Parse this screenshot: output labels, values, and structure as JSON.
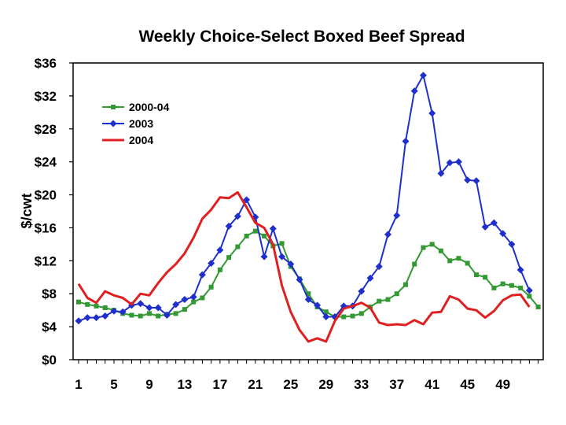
{
  "chart_data": {
    "type": "line",
    "title": "Weekly Choice-Select Boxed Beef Spread",
    "ylabel": "$/cwt",
    "xlabel": "",
    "xlim": [
      1,
      53
    ],
    "ylim": [
      0,
      36
    ],
    "x_ticks": [
      1,
      5,
      9,
      13,
      17,
      21,
      25,
      29,
      33,
      37,
      41,
      45,
      49
    ],
    "x_tick_labels": [
      "1",
      "5",
      "9",
      "13",
      "17",
      "21",
      "25",
      "29",
      "33",
      "37",
      "41",
      "45",
      "49"
    ],
    "y_ticks": [
      0,
      4,
      8,
      12,
      16,
      20,
      24,
      28,
      32,
      36
    ],
    "y_tick_labels": [
      "$0",
      "$4",
      "$8",
      "$12",
      "$16",
      "$20",
      "$24",
      "$28",
      "$32",
      "$36"
    ],
    "grid": false,
    "legend_position": "top-left",
    "series": [
      {
        "name": "2000-04",
        "color": "#339933",
        "marker": "square",
        "values": [
          7.0,
          6.7,
          6.5,
          6.3,
          6.0,
          5.6,
          5.4,
          5.3,
          5.6,
          5.3,
          5.5,
          5.6,
          6.1,
          7.0,
          7.5,
          8.8,
          10.9,
          12.4,
          13.7,
          15.0,
          15.6,
          15.0,
          13.8,
          14.1,
          11.3,
          9.8,
          8.0,
          6.4,
          5.8,
          5.2,
          5.2,
          5.3,
          5.6,
          6.4,
          7.1,
          7.3,
          8.0,
          9.1,
          11.6,
          13.6,
          14.0,
          13.2,
          12.0,
          12.3,
          11.7,
          10.3,
          10.0,
          8.7,
          9.2,
          9.0,
          8.7,
          7.7,
          6.4
        ]
      },
      {
        "name": "2003",
        "color": "#1f2fcc",
        "marker": "diamond",
        "values": [
          4.7,
          5.1,
          5.1,
          5.3,
          5.9,
          5.8,
          6.6,
          6.8,
          6.3,
          6.3,
          5.4,
          6.7,
          7.3,
          7.6,
          10.3,
          11.7,
          13.3,
          16.2,
          17.4,
          19.4,
          17.3,
          12.5,
          15.9,
          12.5,
          11.6,
          9.7,
          7.3,
          6.6,
          5.2,
          5.2,
          6.5,
          6.5,
          8.3,
          9.9,
          11.3,
          15.2,
          17.5,
          26.5,
          32.6,
          34.5,
          29.9,
          22.6,
          23.9,
          24.0,
          21.8,
          21.7,
          16.1,
          16.6,
          15.3,
          14.0,
          10.9,
          8.4
        ]
      },
      {
        "name": "2004",
        "color": "#e02020",
        "marker": "none",
        "values": [
          9.2,
          7.5,
          6.9,
          8.3,
          7.8,
          7.5,
          6.7,
          8.0,
          7.8,
          9.3,
          10.6,
          11.6,
          12.9,
          14.8,
          17.1,
          18.2,
          19.7,
          19.6,
          20.3,
          18.5,
          16.6,
          16.0,
          14.0,
          9.0,
          5.8,
          3.6,
          2.2,
          2.6,
          2.2,
          4.7,
          6.2,
          6.5,
          6.9,
          6.3,
          4.5,
          4.2,
          4.3,
          4.2,
          4.8,
          4.3,
          5.7,
          5.8,
          7.7,
          7.3,
          6.2,
          6.0,
          5.1,
          5.9,
          7.2,
          7.8,
          7.9,
          6.4
        ]
      }
    ]
  }
}
